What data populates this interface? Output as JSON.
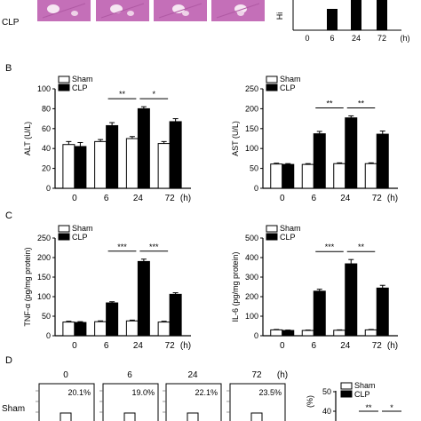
{
  "panel_a": {
    "row_label": "CLP",
    "image_color": "#c46fb8",
    "x_ticks": [
      "0",
      "6",
      "24",
      "72"
    ],
    "x_unit": "(h)",
    "ylabel_fragment": "Hi"
  },
  "panel_labels": {
    "b": "B",
    "c": "C",
    "d": "D"
  },
  "legend": {
    "sham": "Sham",
    "clp": "CLP"
  },
  "colors": {
    "sham": "#ffffff",
    "clp": "#000000",
    "axis": "#000000"
  },
  "chart_data": [
    {
      "id": "alt",
      "type": "bar",
      "ylabel": "ALT (U/L)",
      "categories": [
        "0",
        "6",
        "24",
        "72"
      ],
      "x_unit": "(h)",
      "ylim": [
        0,
        100
      ],
      "yticks": [
        0,
        20,
        40,
        60,
        80,
        100
      ],
      "series": [
        {
          "name": "Sham",
          "values": [
            44,
            47,
            50,
            45
          ],
          "errors": [
            3,
            2,
            2,
            2
          ]
        },
        {
          "name": "CLP",
          "values": [
            42,
            63,
            80,
            67
          ],
          "errors": [
            4,
            3,
            2,
            3
          ]
        }
      ],
      "significance": [
        {
          "from": 1,
          "to": 2,
          "label": "**"
        },
        {
          "from": 2,
          "to": 3,
          "label": "*"
        }
      ]
    },
    {
      "id": "ast",
      "type": "bar",
      "ylabel": "AST (U/L)",
      "categories": [
        "0",
        "6",
        "24",
        "72"
      ],
      "x_unit": "(h)",
      "ylim": [
        0,
        250
      ],
      "yticks": [
        0,
        50,
        100,
        150,
        200,
        250
      ],
      "series": [
        {
          "name": "Sham",
          "values": [
            61,
            60,
            62,
            62
          ],
          "errors": [
            2,
            2,
            2,
            2
          ]
        },
        {
          "name": "CLP",
          "values": [
            60,
            137,
            177,
            136
          ],
          "errors": [
            2,
            6,
            5,
            8
          ]
        }
      ],
      "significance": [
        {
          "from": 1,
          "to": 2,
          "label": "**"
        },
        {
          "from": 2,
          "to": 3,
          "label": "**"
        }
      ]
    },
    {
      "id": "tnf",
      "type": "bar",
      "ylabel": "TNF-α (pg/mg protein)",
      "categories": [
        "0",
        "6",
        "24",
        "72"
      ],
      "x_unit": "(h)",
      "ylim": [
        0,
        250
      ],
      "yticks": [
        0,
        50,
        100,
        150,
        200,
        250
      ],
      "series": [
        {
          "name": "Sham",
          "values": [
            35,
            36,
            38,
            35
          ],
          "errors": [
            2,
            2,
            2,
            2
          ]
        },
        {
          "name": "CLP",
          "values": [
            34,
            84,
            190,
            106
          ],
          "errors": [
            2,
            3,
            6,
            4
          ]
        }
      ],
      "significance": [
        {
          "from": 1,
          "to": 2,
          "label": "***"
        },
        {
          "from": 2,
          "to": 3,
          "label": "***"
        }
      ]
    },
    {
      "id": "il6",
      "type": "bar",
      "ylabel": "IL-6 (pg/mg protein)",
      "categories": [
        "0",
        "6",
        "24",
        "72"
      ],
      "x_unit": "(h)",
      "ylim": [
        0,
        500
      ],
      "yticks": [
        0,
        100,
        200,
        300,
        400,
        500
      ],
      "series": [
        {
          "name": "Sham",
          "values": [
            30,
            27,
            28,
            30
          ],
          "errors": [
            2,
            2,
            2,
            2
          ]
        },
        {
          "name": "CLP",
          "values": [
            27,
            228,
            368,
            244
          ],
          "errors": [
            2,
            10,
            22,
            14
          ]
        }
      ],
      "significance": [
        {
          "from": 1,
          "to": 2,
          "label": "***"
        },
        {
          "from": 2,
          "to": 3,
          "label": "**"
        }
      ]
    },
    {
      "id": "d_bar",
      "type": "bar",
      "ylabel": "(%)",
      "ylim_visible": [
        40,
        50
      ],
      "yticks": [
        40,
        50
      ],
      "significance_labels": [
        "**",
        "*"
      ]
    }
  ],
  "panel_d": {
    "time_labels": [
      "0",
      "6",
      "24",
      "72"
    ],
    "x_unit": "(h)",
    "row_label": "Sham",
    "percentages": [
      "20.1%",
      "19.0%",
      "22.1%",
      "23.5%"
    ]
  }
}
